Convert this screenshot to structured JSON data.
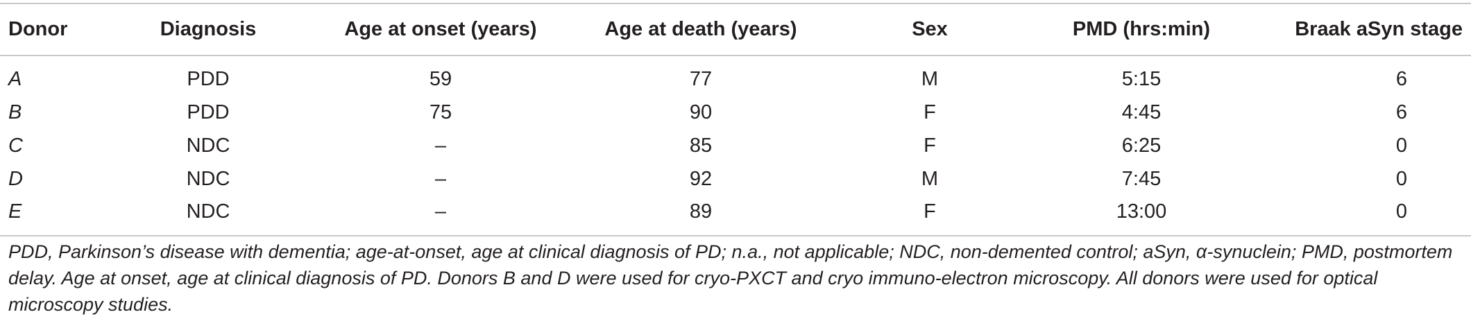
{
  "table": {
    "headers": [
      "Donor",
      "Diagnosis",
      "Age at onset (years)",
      "Age at death (years)",
      "Sex",
      "PMD (hrs:min)",
      "Braak aSyn stage"
    ],
    "rows": [
      [
        "A",
        "PDD",
        "59",
        "77",
        "M",
        "5:15",
        "6"
      ],
      [
        "B",
        "PDD",
        "75",
        "90",
        "F",
        "4:45",
        "6"
      ],
      [
        "C",
        "NDC",
        "–",
        "85",
        "F",
        "6:25",
        "0"
      ],
      [
        "D",
        "NDC",
        "–",
        "92",
        "M",
        "7:45",
        "0"
      ],
      [
        "E",
        "NDC",
        "–",
        "89",
        "F",
        "13:00",
        "0"
      ]
    ]
  },
  "footnote": "PDD, Parkinson’s disease with dementia; age-at-onset, age at clinical diagnosis of PD; n.a., not applicable; NDC, non-demented control; aSyn, α-synuclein; PMD, postmortem delay. Age at onset, age at clinical diagnosis of PD. Donors B and D were used for cryo-PXCT and cryo immuno-electron microscopy. All donors were used for optical microscopy studies.",
  "colors": {
    "text": "#231f20",
    "rule": "#c8c8c8",
    "background": "#ffffff"
  }
}
